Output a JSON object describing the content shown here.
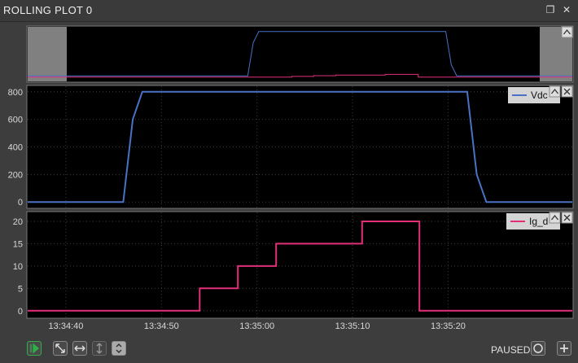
{
  "window": {
    "title": "ROLLING PLOT 0",
    "restore_icon": "window-restore-icon",
    "close_icon": "close-icon"
  },
  "overview": {
    "collapse_icon": "chevron-up-icon"
  },
  "plots": [
    {
      "legend": "Vdc",
      "color": "#4a72c4",
      "yticks": [
        "800",
        "600",
        "400",
        "200",
        "0"
      ],
      "icons": [
        "chevron-up-icon",
        "close-icon"
      ]
    },
    {
      "legend": "Ig_d",
      "color": "#e0307a",
      "yticks": [
        "20",
        "15",
        "10",
        "5",
        "0"
      ],
      "icons": [
        "chevron-up-icon",
        "close-icon"
      ]
    }
  ],
  "xaxis": {
    "ticks": [
      "13:34:40",
      "13:34:50",
      "13:35:00",
      "13:35:10",
      "13:35:20"
    ]
  },
  "toolbar": {
    "play_icon": "play-icon",
    "fit_icon": "fit-icon",
    "hzoom_icon": "horizontal-zoom-icon",
    "vzoom_icon": "vertical-zoom-icon",
    "expand_icon": "expand-icon",
    "paused_label": "PAUSED",
    "record_icon": "record-icon",
    "add_icon": "add-icon"
  },
  "chart_data": [
    {
      "type": "line",
      "x": [
        "13:34:36",
        "13:34:46",
        "13:34:47",
        "13:34:48",
        "13:35:13",
        "13:35:22",
        "13:35:23",
        "13:35:24",
        "13:35:33"
      ],
      "series": [
        {
          "name": "Vdc",
          "values": [
            0,
            0,
            600,
            800,
            800,
            800,
            200,
            0,
            0
          ]
        }
      ],
      "ylim": [
        -40,
        840
      ]
    },
    {
      "type": "line",
      "x": [
        "13:34:36",
        "13:34:54",
        "13:34:54",
        "13:34:58",
        "13:34:58",
        "13:35:02",
        "13:35:02",
        "13:35:11",
        "13:35:11",
        "13:35:17",
        "13:35:17",
        "13:35:33"
      ],
      "series": [
        {
          "name": "Ig_d",
          "values": [
            0,
            0,
            5,
            5,
            10,
            10,
            15,
            15,
            20,
            20,
            0,
            0
          ]
        }
      ],
      "ylim": [
        -1.5,
        22
      ]
    }
  ]
}
